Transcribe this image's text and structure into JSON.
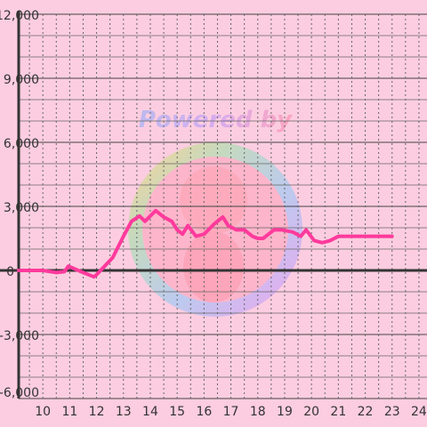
{
  "chart_data": {
    "type": "line",
    "title": "",
    "xlabel": "",
    "ylabel": "",
    "x_ticks": [
      "10",
      "11",
      "12",
      "13",
      "14",
      "15",
      "16",
      "17",
      "18",
      "19",
      "20",
      "21",
      "22",
      "23",
      "24"
    ],
    "y_ticks": [
      "12,000",
      "9,000",
      "6,000",
      "3,000",
      "0",
      "-3,000",
      "-6,000"
    ],
    "xlim": [
      9.1,
      24.3
    ],
    "ylim": [
      -6000,
      12000
    ],
    "grid": true,
    "watermark": "Powered by",
    "colors": {
      "background": "#fccde0",
      "line": "#ff3a9c",
      "grid_major": "#444444",
      "grid_minor": "#666666",
      "axis": "#333333"
    },
    "series": [
      {
        "name": "",
        "points": [
          [
            9.1,
            0
          ],
          [
            9.5,
            0
          ],
          [
            10.0,
            0
          ],
          [
            10.5,
            -100
          ],
          [
            10.8,
            -60
          ],
          [
            10.95,
            200
          ],
          [
            11.1,
            120
          ],
          [
            11.5,
            -100
          ],
          [
            11.9,
            -300
          ],
          [
            12.0,
            -200
          ],
          [
            12.3,
            200
          ],
          [
            12.6,
            600
          ],
          [
            13.0,
            1600
          ],
          [
            13.3,
            2300
          ],
          [
            13.6,
            2550
          ],
          [
            13.8,
            2300
          ],
          [
            14.2,
            2800
          ],
          [
            14.5,
            2500
          ],
          [
            14.8,
            2300
          ],
          [
            15.0,
            1900
          ],
          [
            15.2,
            1700
          ],
          [
            15.4,
            2100
          ],
          [
            15.7,
            1600
          ],
          [
            16.0,
            1700
          ],
          [
            16.4,
            2200
          ],
          [
            16.7,
            2500
          ],
          [
            16.9,
            2100
          ],
          [
            17.2,
            1900
          ],
          [
            17.5,
            1900
          ],
          [
            17.8,
            1600
          ],
          [
            18.0,
            1500
          ],
          [
            18.2,
            1500
          ],
          [
            18.6,
            1900
          ],
          [
            18.9,
            1900
          ],
          [
            19.3,
            1800
          ],
          [
            19.6,
            1600
          ],
          [
            19.8,
            1900
          ],
          [
            20.1,
            1400
          ],
          [
            20.4,
            1300
          ],
          [
            20.7,
            1400
          ],
          [
            21.0,
            1600
          ],
          [
            21.5,
            1600
          ],
          [
            22.0,
            1600
          ],
          [
            22.5,
            1600
          ],
          [
            23.0,
            1600
          ]
        ]
      }
    ]
  }
}
